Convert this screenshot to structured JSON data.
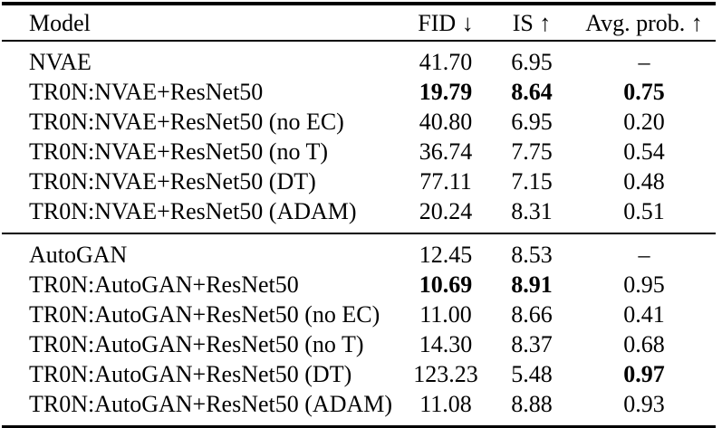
{
  "page": {
    "background_color": "#ffffff",
    "text_color": "#000000"
  },
  "table": {
    "columns": [
      {
        "key": "model",
        "label": "Model"
      },
      {
        "key": "fid",
        "label": "FID ↓"
      },
      {
        "key": "is",
        "label": "IS ↑"
      },
      {
        "key": "avg_prob",
        "label": "Avg. prob. ↑"
      }
    ],
    "groups": [
      {
        "rows": [
          {
            "model": "NVAE",
            "fid": "41.70",
            "is": "6.95",
            "avg_prob": "–",
            "bold": []
          },
          {
            "model": "TR0N:NVAE+ResNet50",
            "fid": "19.79",
            "is": "8.64",
            "avg_prob": "0.75",
            "bold": [
              "fid",
              "is",
              "avg_prob"
            ]
          },
          {
            "model": "TR0N:NVAE+ResNet50 (no EC)",
            "fid": "40.80",
            "is": "6.95",
            "avg_prob": "0.20",
            "bold": []
          },
          {
            "model": "TR0N:NVAE+ResNet50 (no T)",
            "fid": "36.74",
            "is": "7.75",
            "avg_prob": "0.54",
            "bold": []
          },
          {
            "model": "TR0N:NVAE+ResNet50 (DT)",
            "fid": "77.11",
            "is": "7.15",
            "avg_prob": "0.48",
            "bold": []
          },
          {
            "model": "TR0N:NVAE+ResNet50 (ADAM)",
            "fid": "20.24",
            "is": "8.31",
            "avg_prob": "0.51",
            "bold": []
          }
        ]
      },
      {
        "rows": [
          {
            "model": "AutoGAN",
            "fid": "12.45",
            "is": "8.53",
            "avg_prob": "–",
            "bold": []
          },
          {
            "model": "TR0N:AutoGAN+ResNet50",
            "fid": "10.69",
            "is": "8.91",
            "avg_prob": "0.95",
            "bold": [
              "fid",
              "is"
            ]
          },
          {
            "model": "TR0N:AutoGAN+ResNet50 (no EC)",
            "fid": "11.00",
            "is": "8.66",
            "avg_prob": "0.41",
            "bold": []
          },
          {
            "model": "TR0N:AutoGAN+ResNet50 (no T)",
            "fid": "14.30",
            "is": "8.37",
            "avg_prob": "0.68",
            "bold": []
          },
          {
            "model": "TR0N:AutoGAN+ResNet50 (DT)",
            "fid": "123.23",
            "is": "5.48",
            "avg_prob": "0.97",
            "bold": [
              "avg_prob"
            ]
          },
          {
            "model": "TR0N:AutoGAN+ResNet50 (ADAM)",
            "fid": "11.08",
            "is": "8.88",
            "avg_prob": "0.93",
            "bold": []
          }
        ]
      }
    ]
  }
}
